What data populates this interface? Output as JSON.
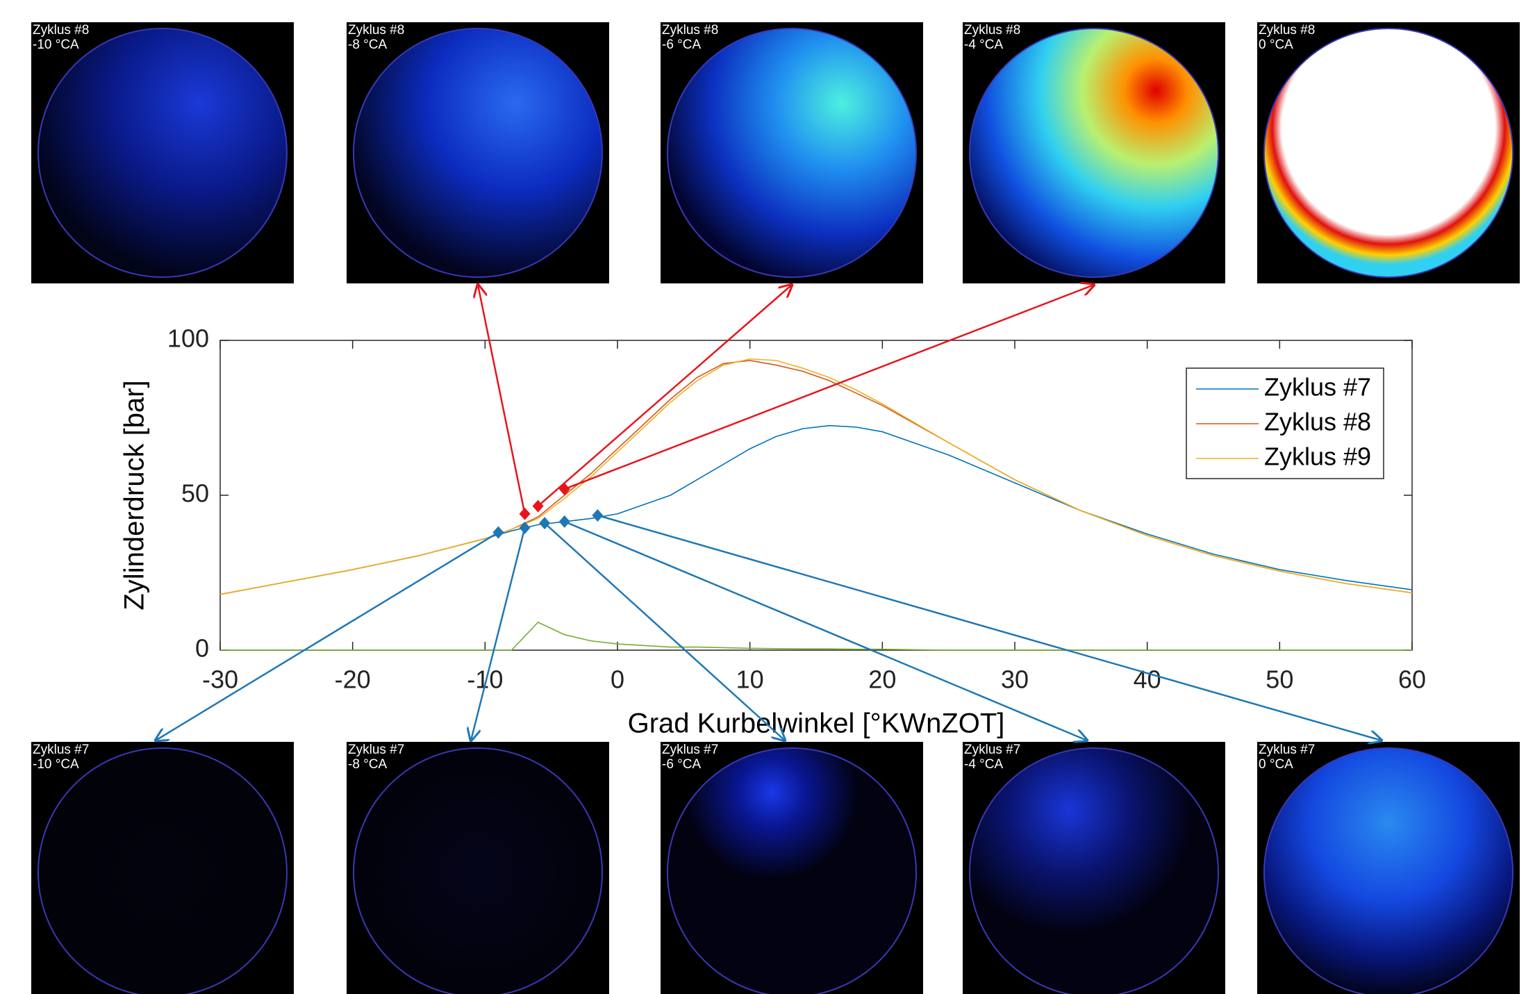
{
  "chart_data": {
    "type": "line",
    "x": [
      -30,
      -25,
      -20,
      -15,
      -10,
      -8,
      -6,
      -4,
      -2,
      0,
      2,
      4,
      6,
      8,
      10,
      12,
      14,
      16,
      18,
      20,
      25,
      30,
      35,
      40,
      45,
      50,
      55,
      60
    ],
    "series": [
      {
        "name": "Zyklus #7",
        "color": "#0072bd",
        "values": [
          18,
          22,
          26,
          30.5,
          36,
          38.5,
          40.5,
          41.5,
          42.5,
          44,
          47,
          50,
          55,
          60,
          65,
          69,
          71.5,
          72.5,
          72,
          70.5,
          63,
          54,
          45,
          37.5,
          31,
          26,
          22.5,
          19.5
        ]
      },
      {
        "name": "Zyklus #8",
        "color": "#d95319",
        "values": [
          18,
          22,
          26,
          30.5,
          36,
          39,
          43,
          50,
          57,
          65,
          73,
          81,
          88,
          92.5,
          93.5,
          92,
          90,
          87,
          83,
          79,
          67,
          55,
          45,
          37,
          30.5,
          25.5,
          21.5,
          18.5
        ]
      },
      {
        "name": "Zyklus #9",
        "color": "#edb120",
        "values": [
          18,
          22,
          26,
          30.5,
          36,
          39,
          42.5,
          49,
          56,
          64,
          72,
          80,
          87,
          92,
          94,
          93.5,
          91,
          88,
          84,
          79.5,
          67,
          55,
          45,
          37,
          30.5,
          25.5,
          21.5,
          18.5
        ]
      },
      {
        "color": "#77ac30",
        "values": [
          0,
          0,
          0,
          0,
          0,
          0,
          9,
          5,
          3,
          2,
          1.5,
          1,
          1,
          0.8,
          0.6,
          0.5,
          0.4,
          0.4,
          0.3,
          0.3,
          0,
          0,
          0,
          0,
          0,
          0,
          0,
          0
        ]
      }
    ],
    "xlim": [
      -30,
      60
    ],
    "xticks": [
      -30,
      -20,
      -10,
      0,
      10,
      20,
      30,
      40,
      50,
      60
    ],
    "ylim": [
      0,
      100
    ],
    "yticks": [
      0,
      50,
      100
    ],
    "xlabel": "Grad Kurbelwinkel [°KWnZOT]",
    "ylabel": "Zylinderdruck [bar]",
    "legend": "upper right",
    "markers": [
      {
        "color": "#e8141b",
        "x": [
          -7,
          -6,
          -4
        ],
        "y": [
          44,
          46.5,
          52
        ]
      },
      {
        "color": "#1f77b4",
        "x": [
          -9,
          -7,
          -5.5,
          -4,
          -1.5
        ],
        "y": [
          38,
          39.5,
          41,
          41.5,
          43.5
        ]
      }
    ]
  },
  "panels": {
    "top": [
      {
        "cycle": "Zyklus #8",
        "angle": "-10 °CA"
      },
      {
        "cycle": "Zyklus #8",
        "angle": "-8 °CA"
      },
      {
        "cycle": "Zyklus #8",
        "angle": "-6 °CA"
      },
      {
        "cycle": "Zyklus #8",
        "angle": "-4 °CA"
      },
      {
        "cycle": "Zyklus #8",
        "angle": "0 °CA"
      }
    ],
    "bottom": [
      {
        "cycle": "Zyklus #7",
        "angle": "-10 °CA"
      },
      {
        "cycle": "Zyklus #7",
        "angle": "-8 °CA"
      },
      {
        "cycle": "Zyklus #7",
        "angle": "-6 °CA"
      },
      {
        "cycle": "Zyklus #7",
        "angle": "-4 °CA"
      },
      {
        "cycle": "Zyklus #7",
        "angle": "0 °CA"
      }
    ]
  }
}
